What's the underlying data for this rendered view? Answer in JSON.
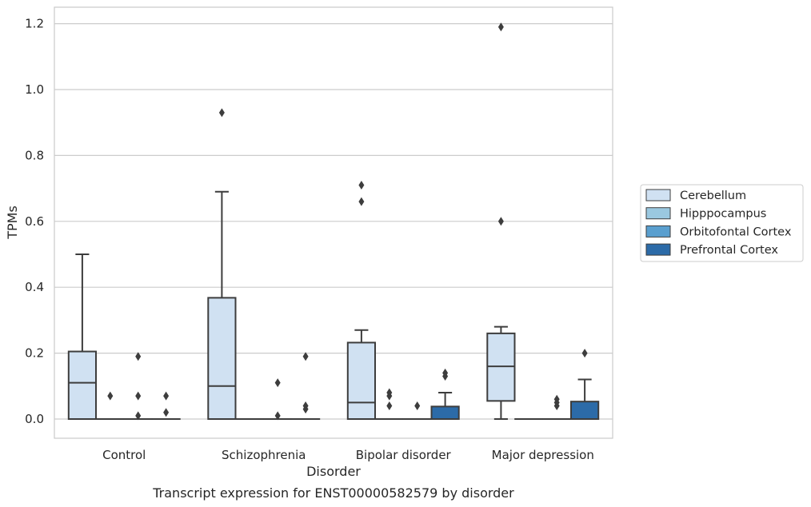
{
  "chart_data": {
    "type": "box",
    "caption": "Transcript expression for ENST00000582579 by disorder",
    "xlabel": "Disorder",
    "ylabel": "TPMs",
    "ylim": [
      -0.058,
      1.25
    ],
    "yticks": [
      0.0,
      0.2,
      0.4,
      0.6,
      0.8,
      1.0,
      1.2
    ],
    "ytick_labels": [
      "0.0",
      "0.2",
      "0.4",
      "0.6",
      "0.8",
      "1.0",
      "1.2"
    ],
    "grid": true,
    "legend_position": "right",
    "categories": [
      "Control",
      "Schizophrenia",
      "Bipolar disorder",
      "Major depression"
    ],
    "series": [
      {
        "name": "Cerebellum",
        "color": "#d0e1f2",
        "boxes": [
          {
            "q1": 0.0,
            "median": 0.11,
            "q3": 0.205,
            "whislo": 0.0,
            "whishi": 0.5,
            "fliers": []
          },
          {
            "q1": 0.0,
            "median": 0.1,
            "q3": 0.368,
            "whislo": 0.0,
            "whishi": 0.69,
            "fliers": [
              0.93
            ]
          },
          {
            "q1": 0.0,
            "median": 0.05,
            "q3": 0.232,
            "whislo": 0.0,
            "whishi": 0.27,
            "fliers": [
              0.66,
              0.71
            ]
          },
          {
            "q1": 0.055,
            "median": 0.16,
            "q3": 0.26,
            "whislo": 0.0,
            "whishi": 0.28,
            "fliers": [
              0.6,
              1.19
            ]
          }
        ]
      },
      {
        "name": "Hipppocampus",
        "color": "#9ac8e0",
        "boxes": [
          {
            "q1": 0.0,
            "median": 0.0,
            "q3": 0.0,
            "whislo": 0.0,
            "whishi": 0.0,
            "fliers": [
              0.07
            ]
          },
          {
            "q1": 0.0,
            "median": 0.0,
            "q3": 0.0,
            "whislo": 0.0,
            "whishi": 0.0,
            "fliers": []
          },
          {
            "q1": 0.0,
            "median": 0.0,
            "q3": 0.0,
            "whislo": 0.0,
            "whishi": 0.0,
            "fliers": [
              0.04,
              0.07,
              0.08
            ]
          },
          {
            "q1": 0.0,
            "median": 0.0,
            "q3": 0.0,
            "whislo": 0.0,
            "whishi": 0.0,
            "fliers": []
          }
        ]
      },
      {
        "name": "Orbitofontal Cortex",
        "color": "#5a9fcf",
        "boxes": [
          {
            "q1": 0.0,
            "median": 0.0,
            "q3": 0.0,
            "whislo": 0.0,
            "whishi": 0.0,
            "fliers": [
              0.01,
              0.07,
              0.19
            ]
          },
          {
            "q1": 0.0,
            "median": 0.0,
            "q3": 0.0,
            "whislo": 0.0,
            "whishi": 0.0,
            "fliers": [
              0.01,
              0.11
            ]
          },
          {
            "q1": 0.0,
            "median": 0.0,
            "q3": 0.0,
            "whislo": 0.0,
            "whishi": 0.0,
            "fliers": [
              0.04
            ]
          },
          {
            "q1": 0.0,
            "median": 0.0,
            "q3": 0.0,
            "whislo": 0.0,
            "whishi": 0.0,
            "fliers": [
              0.04,
              0.05,
              0.06
            ]
          }
        ]
      },
      {
        "name": "Prefrontal Cortex",
        "color": "#2c6ba8",
        "boxes": [
          {
            "q1": 0.0,
            "median": 0.0,
            "q3": 0.0,
            "whislo": 0.0,
            "whishi": 0.0,
            "fliers": [
              0.02,
              0.07
            ]
          },
          {
            "q1": 0.0,
            "median": 0.0,
            "q3": 0.0,
            "whislo": 0.0,
            "whishi": 0.0,
            "fliers": [
              0.03,
              0.04,
              0.19
            ]
          },
          {
            "q1": 0.0,
            "median": 0.0,
            "q3": 0.038,
            "whislo": 0.0,
            "whishi": 0.08,
            "fliers": [
              0.13,
              0.14
            ]
          },
          {
            "q1": 0.0,
            "median": 0.0,
            "q3": 0.053,
            "whislo": 0.0,
            "whishi": 0.12,
            "fliers": [
              0.2
            ]
          }
        ]
      }
    ]
  }
}
